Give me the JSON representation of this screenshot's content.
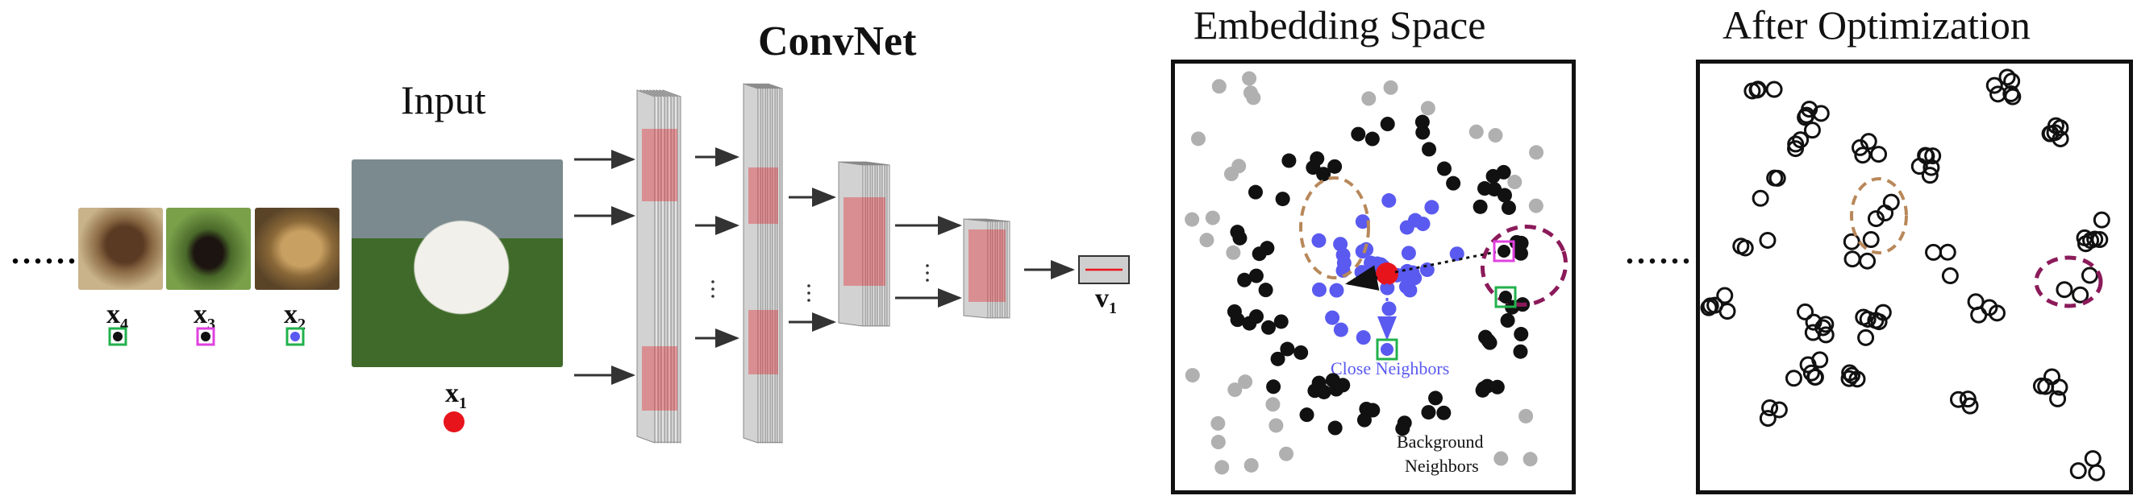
{
  "titles": {
    "input": "Input",
    "convnet": "ConvNet",
    "embedding": "Embedding Space",
    "after": "After Optimization"
  },
  "samples": [
    {
      "label": "x",
      "sub": "4",
      "marker": "black-dot-green-box"
    },
    {
      "label": "x",
      "sub": "3",
      "marker": "black-dot-magenta-box"
    },
    {
      "label": "x",
      "sub": "2",
      "marker": "blue-dot-green-box"
    }
  ],
  "input_label": {
    "label": "x",
    "sub": "1"
  },
  "output_label": {
    "label": "v",
    "sub": "1"
  },
  "embedding_labels": {
    "close": "Close Neighbors",
    "background_line1": "Background",
    "background_line2": "Neighbors"
  },
  "ellipsis": "......",
  "colors": {
    "blue": "#5a5af0",
    "red": "#e8141c",
    "gray": "#b0b0b0",
    "green": "#22b14c",
    "magenta": "#e040e0",
    "brown": "#b8885a",
    "purple": "#8b1a5a"
  }
}
